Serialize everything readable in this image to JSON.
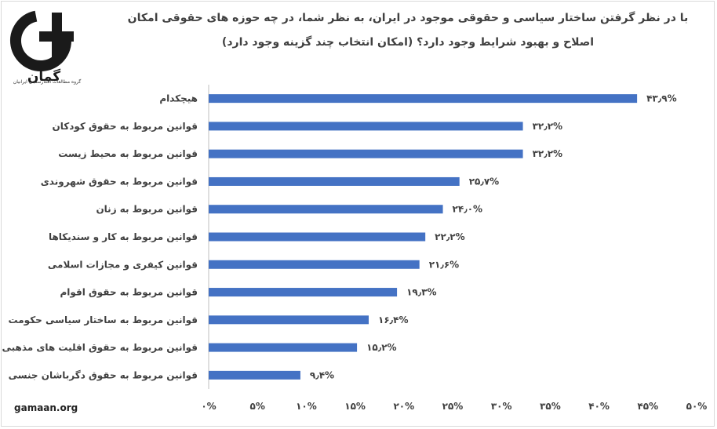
{
  "brand": {
    "logo_text": "گمان",
    "logo_caption": "گروه مطالعات افکارسنجی ایرانیان",
    "site": "gamaan.org"
  },
  "colors": {
    "bar": "#4472c4",
    "axis": "#bfbfbf",
    "text": "#404040"
  },
  "chart_data": {
    "type": "bar",
    "orientation": "horizontal",
    "title_lines": [
      "با در نظر گرفتن ساختار سیاسی و حقوقی موجود در ایران، به نظر شما، در چه حوزه های حقوقی امکان",
      "اصلاح و بهبود شرایط وجود دارد؟ (امکان انتخاب چند گزینه وجود دارد)"
    ],
    "categories": [
      "هیچکدام",
      "قوانین مربوط به حقوق کودکان",
      "قوانین مربوط به محیط زیست",
      "قوانین مربوط به حقوق شهروندی",
      "قوانین مربوط به زنان",
      "قوانین مربوط به کار و سندیکاها",
      "قوانین کیفری و مجازات اسلامی",
      "قوانین مربوط به حقوق اقوام",
      "قوانین مربوط به ساختار سیاسی حکومت",
      "قوانین مربوط به حقوق اقلیت های مذهبی",
      "قوانین مربوط به حقوق دگرباشان جنسی"
    ],
    "values": [
      43.9,
      32.2,
      32.2,
      25.7,
      24.0,
      22.2,
      21.6,
      19.3,
      16.4,
      15.2,
      9.4
    ],
    "value_labels": [
      "۴۳٫۹%",
      "۳۲٫۲%",
      "۳۲٫۲%",
      "۲۵٫۷%",
      "۲۴٫۰%",
      "۲۲٫۲%",
      "۲۱٫۶%",
      "۱۹٫۳%",
      "۱۶٫۴%",
      "۱۵٫۲%",
      "۹٫۴%"
    ],
    "xlim": [
      0,
      50
    ],
    "x_ticks": [
      0,
      5,
      10,
      15,
      20,
      25,
      30,
      35,
      40,
      45,
      50
    ],
    "x_tick_labels": [
      "۰%",
      "۵%",
      "۱۰%",
      "۱۵%",
      "۲۰%",
      "۲۵%",
      "۳۰%",
      "۳۵%",
      "۴۰%",
      "۴۵%",
      "۵۰%"
    ],
    "grid": false,
    "legend": "none"
  }
}
